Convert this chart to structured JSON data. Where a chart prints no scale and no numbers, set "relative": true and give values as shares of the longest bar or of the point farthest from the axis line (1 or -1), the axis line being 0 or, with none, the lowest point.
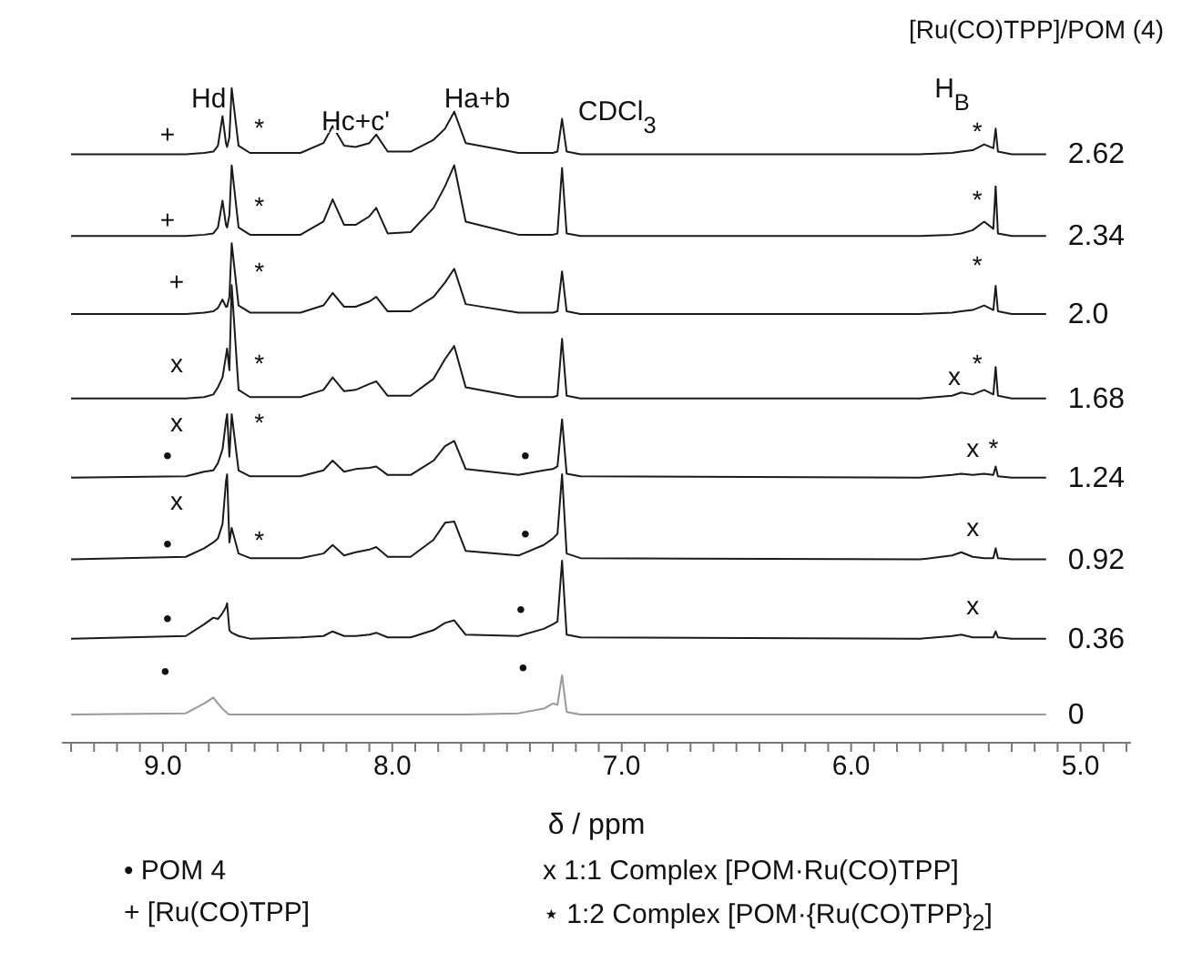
{
  "chart_data": {
    "type": "line",
    "relative": true,
    "marker": "none",
    "xlabel": "δ / ppm",
    "legend_title": "[Ru(CO)TPP]/POM (4)",
    "x": [
      9.4,
      8.9,
      8.82,
      8.78,
      8.76,
      8.74,
      8.725,
      8.72,
      8.71,
      8.7,
      8.67,
      8.62,
      8.4,
      8.3,
      8.26,
      8.21,
      8.16,
      8.1,
      8.07,
      8.02,
      7.92,
      7.82,
      7.77,
      7.73,
      7.68,
      7.45,
      7.34,
      7.3,
      7.28,
      7.26,
      7.24,
      7.18,
      5.7,
      5.56,
      5.52,
      5.47,
      5.42,
      5.38,
      5.37,
      5.36,
      5.3,
      5.15
    ],
    "xlim": [
      9.44,
      4.78
    ],
    "xticks": [
      {
        "value": 9.4,
        "label": null
      },
      {
        "value": 9.3,
        "label": null
      },
      {
        "value": 9.2,
        "label": null
      },
      {
        "value": 9.1,
        "label": null
      },
      {
        "value": 9,
        "label": "9.0"
      },
      {
        "value": 8.9,
        "label": null
      },
      {
        "value": 8.8,
        "label": null
      },
      {
        "value": 8.7,
        "label": null
      },
      {
        "value": 8.6,
        "label": null
      },
      {
        "value": 8.5,
        "label": null
      },
      {
        "value": 8.4,
        "label": null
      },
      {
        "value": 8.3,
        "label": null
      },
      {
        "value": 8.2,
        "label": null
      },
      {
        "value": 8.1,
        "label": null
      },
      {
        "value": 8,
        "label": "8.0"
      },
      {
        "value": 7.9,
        "label": null
      },
      {
        "value": 7.8,
        "label": null
      },
      {
        "value": 7.7,
        "label": null
      },
      {
        "value": 7.6,
        "label": null
      },
      {
        "value": 7.5,
        "label": null
      },
      {
        "value": 7.4,
        "label": null
      },
      {
        "value": 7.3,
        "label": null
      },
      {
        "value": 7.2,
        "label": null
      },
      {
        "value": 7.1,
        "label": null
      },
      {
        "value": 7,
        "label": "7.0"
      },
      {
        "value": 6.9,
        "label": null
      },
      {
        "value": 6.8,
        "label": null
      },
      {
        "value": 6.7,
        "label": null
      },
      {
        "value": 6.6,
        "label": null
      },
      {
        "value": 6.5,
        "label": null
      },
      {
        "value": 6.4,
        "label": null
      },
      {
        "value": 6.3,
        "label": null
      },
      {
        "value": 6.2,
        "label": null
      },
      {
        "value": 6.1,
        "label": null
      },
      {
        "value": 6,
        "label": "6.0"
      },
      {
        "value": 5.9,
        "label": null
      },
      {
        "value": 5.8,
        "label": null
      },
      {
        "value": 5.7,
        "label": null
      },
      {
        "value": 5.6,
        "label": null
      },
      {
        "value": 5.5,
        "label": null
      },
      {
        "value": 5.4,
        "label": null
      },
      {
        "value": 5.3,
        "label": null
      },
      {
        "value": 5.2,
        "label": null
      },
      {
        "value": 5.1,
        "label": null
      },
      {
        "value": 5,
        "label": "5.0"
      },
      {
        "value": 4.9,
        "label": null
      },
      {
        "value": 4.8,
        "label": null
      }
    ],
    "series": [
      {
        "name": "2.62",
        "color": "#1a1a1a",
        "values": [
          0.899,
          0.899,
          0.901,
          0.903,
          0.912,
          0.957,
          0.916,
          0.91,
          0.925,
          1.0,
          0.912,
          0.901,
          0.901,
          0.916,
          0.942,
          0.912,
          0.91,
          0.916,
          0.929,
          0.903,
          0.903,
          0.921,
          0.938,
          0.964,
          0.916,
          0.901,
          0.901,
          0.901,
          0.903,
          0.953,
          0.903,
          0.899,
          0.899,
          0.901,
          0.903,
          0.905,
          0.914,
          0.908,
          0.938,
          0.903,
          0.899,
          0.899
        ]
      },
      {
        "name": "2.34",
        "color": "#1a1a1a",
        "values": [
          0.774,
          0.774,
          0.776,
          0.778,
          0.787,
          0.828,
          0.791,
          0.787,
          0.806,
          0.882,
          0.787,
          0.776,
          0.776,
          0.796,
          0.83,
          0.791,
          0.791,
          0.804,
          0.817,
          0.778,
          0.78,
          0.817,
          0.85,
          0.882,
          0.796,
          0.776,
          0.776,
          0.776,
          0.778,
          0.878,
          0.778,
          0.774,
          0.774,
          0.776,
          0.778,
          0.783,
          0.796,
          0.785,
          0.85,
          0.778,
          0.774,
          0.774
        ]
      },
      {
        "name": "2.0",
        "color": "#1a1a1a",
        "values": [
          0.655,
          0.655,
          0.657,
          0.659,
          0.664,
          0.677,
          0.666,
          0.666,
          0.681,
          0.763,
          0.668,
          0.657,
          0.657,
          0.668,
          0.687,
          0.666,
          0.666,
          0.674,
          0.681,
          0.659,
          0.659,
          0.681,
          0.703,
          0.724,
          0.67,
          0.657,
          0.657,
          0.657,
          0.659,
          0.72,
          0.659,
          0.655,
          0.655,
          0.657,
          0.659,
          0.661,
          0.668,
          0.661,
          0.698,
          0.659,
          0.655,
          0.655
        ]
      },
      {
        "name": "1.68",
        "color": "#1a1a1a",
        "values": [
          0.526,
          0.526,
          0.528,
          0.532,
          0.543,
          0.558,
          0.591,
          0.602,
          0.569,
          0.699,
          0.539,
          0.528,
          0.528,
          0.539,
          0.558,
          0.537,
          0.539,
          0.548,
          0.552,
          0.53,
          0.53,
          0.556,
          0.586,
          0.606,
          0.543,
          0.528,
          0.528,
          0.528,
          0.53,
          0.617,
          0.53,
          0.526,
          0.526,
          0.53,
          0.535,
          0.532,
          0.539,
          0.532,
          0.574,
          0.53,
          0.526,
          0.526
        ]
      },
      {
        "name": "1.24",
        "color": "#1a1a1a",
        "values": [
          0.405,
          0.407,
          0.414,
          0.416,
          0.427,
          0.448,
          0.491,
          0.502,
          0.437,
          0.502,
          0.416,
          0.407,
          0.407,
          0.416,
          0.431,
          0.414,
          0.418,
          0.42,
          0.422,
          0.409,
          0.409,
          0.431,
          0.453,
          0.461,
          0.418,
          0.409,
          0.416,
          0.418,
          0.422,
          0.494,
          0.411,
          0.407,
          0.405,
          0.409,
          0.411,
          0.409,
          0.411,
          0.409,
          0.422,
          0.407,
          0.405,
          0.405
        ]
      },
      {
        "name": "0.92",
        "color": "#1a1a1a",
        "values": [
          0.28,
          0.284,
          0.297,
          0.306,
          0.312,
          0.334,
          0.399,
          0.41,
          0.306,
          0.328,
          0.289,
          0.282,
          0.282,
          0.289,
          0.302,
          0.286,
          0.291,
          0.295,
          0.299,
          0.284,
          0.284,
          0.31,
          0.336,
          0.338,
          0.293,
          0.286,
          0.302,
          0.312,
          0.319,
          0.41,
          0.289,
          0.282,
          0.28,
          0.286,
          0.291,
          0.284,
          0.282,
          0.282,
          0.297,
          0.282,
          0.28,
          0.28
        ]
      },
      {
        "name": "0.36",
        "color": "#1a1a1a",
        "values": [
          0.159,
          0.163,
          0.181,
          0.191,
          0.189,
          0.198,
          0.207,
          0.213,
          0.172,
          0.168,
          0.163,
          0.159,
          0.161,
          0.163,
          0.17,
          0.163,
          0.163,
          0.165,
          0.168,
          0.161,
          0.161,
          0.172,
          0.183,
          0.187,
          0.165,
          0.163,
          0.174,
          0.181,
          0.185,
          0.278,
          0.165,
          0.161,
          0.159,
          0.163,
          0.165,
          0.161,
          0.161,
          0.161,
          0.17,
          0.161,
          0.159,
          0.159
        ]
      },
      {
        "name": "0",
        "color": "#999999",
        "values": [
          0.043,
          0.045,
          0.06,
          0.069,
          0.06,
          0.052,
          0.047,
          0.045,
          0.043,
          0.043,
          0.043,
          0.043,
          0.043,
          0.043,
          0.043,
          0.043,
          0.043,
          0.043,
          0.043,
          0.043,
          0.043,
          0.043,
          0.043,
          0.043,
          0.043,
          0.045,
          0.052,
          0.06,
          0.058,
          0.103,
          0.047,
          0.043,
          0.043,
          0.043,
          0.043,
          0.043,
          0.043,
          0.043,
          0.043,
          0.043,
          0.043,
          0.043
        ]
      }
    ],
    "annotations": [
      "Hd",
      "Hc+c'",
      "Ha+b",
      "CDCl$_{3}$",
      "H$_{B}$",
      "+",
      "*",
      "*",
      "+",
      "*",
      "*",
      "+",
      "*",
      "*",
      "x",
      "*",
      "x",
      "*",
      "•",
      "x",
      "*",
      "•",
      "x",
      "*",
      "x",
      "•",
      "*",
      "•",
      "x",
      "•",
      "•",
      "x",
      "•",
      "•",
      "• POM 4",
      "x 1:1 Complex [POM·Ru(CO)TPP]",
      "+ [Ru(CO)TPP]",
      "⋆ 1:2 Complex [POM·{Ru(CO)TPP}$_{2}$]"
    ]
  }
}
